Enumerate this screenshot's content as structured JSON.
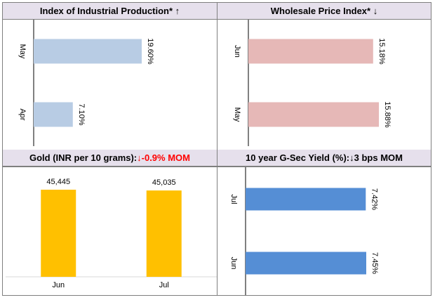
{
  "panels": {
    "iip": {
      "title": "Index of Industrial Production* ↑"
    },
    "wpi": {
      "title": "Wholesale Price Index* ↓"
    },
    "gold": {
      "title_main": "Gold (INR per 10 grams): ",
      "title_change": "↓-0.9% MOM"
    },
    "gsec": {
      "title": "10 year G-Sec Yield (%):↓3 bps MOM"
    }
  },
  "chart_data": [
    {
      "type": "bar",
      "orientation": "horizontal",
      "title": "Index of Industrial Production* ↑",
      "categories": [
        "May",
        "Apr"
      ],
      "values": [
        19.6,
        7.1
      ],
      "data_labels": [
        "19.60%",
        "7.10%"
      ],
      "color": "#b8cce4",
      "xlim": [
        0,
        19.6
      ]
    },
    {
      "type": "bar",
      "orientation": "horizontal",
      "title": "Wholesale Price Index* ↓",
      "categories": [
        "Jun",
        "May"
      ],
      "values": [
        15.18,
        15.88
      ],
      "data_labels": [
        "15.18%",
        "15.88%"
      ],
      "color": "#e6b8b7",
      "xlim": [
        0,
        15.88
      ]
    },
    {
      "type": "bar",
      "orientation": "vertical",
      "title": "Gold (INR per 10 grams): ↓-0.9% MOM",
      "categories": [
        "Jun",
        "Jul"
      ],
      "values": [
        45445,
        45035
      ],
      "data_labels": [
        "45,445",
        "45,035"
      ],
      "color": "#ffc000",
      "ylim": [
        0,
        45445
      ]
    },
    {
      "type": "bar",
      "orientation": "horizontal",
      "title": "10 year G-Sec Yield (%):↓3 bps MOM",
      "categories": [
        "Jul",
        "Jun"
      ],
      "values": [
        7.42,
        7.45
      ],
      "data_labels": [
        "7.42%",
        "7.45%"
      ],
      "color": "#558ed5",
      "xlim": [
        0,
        7.45
      ]
    }
  ]
}
